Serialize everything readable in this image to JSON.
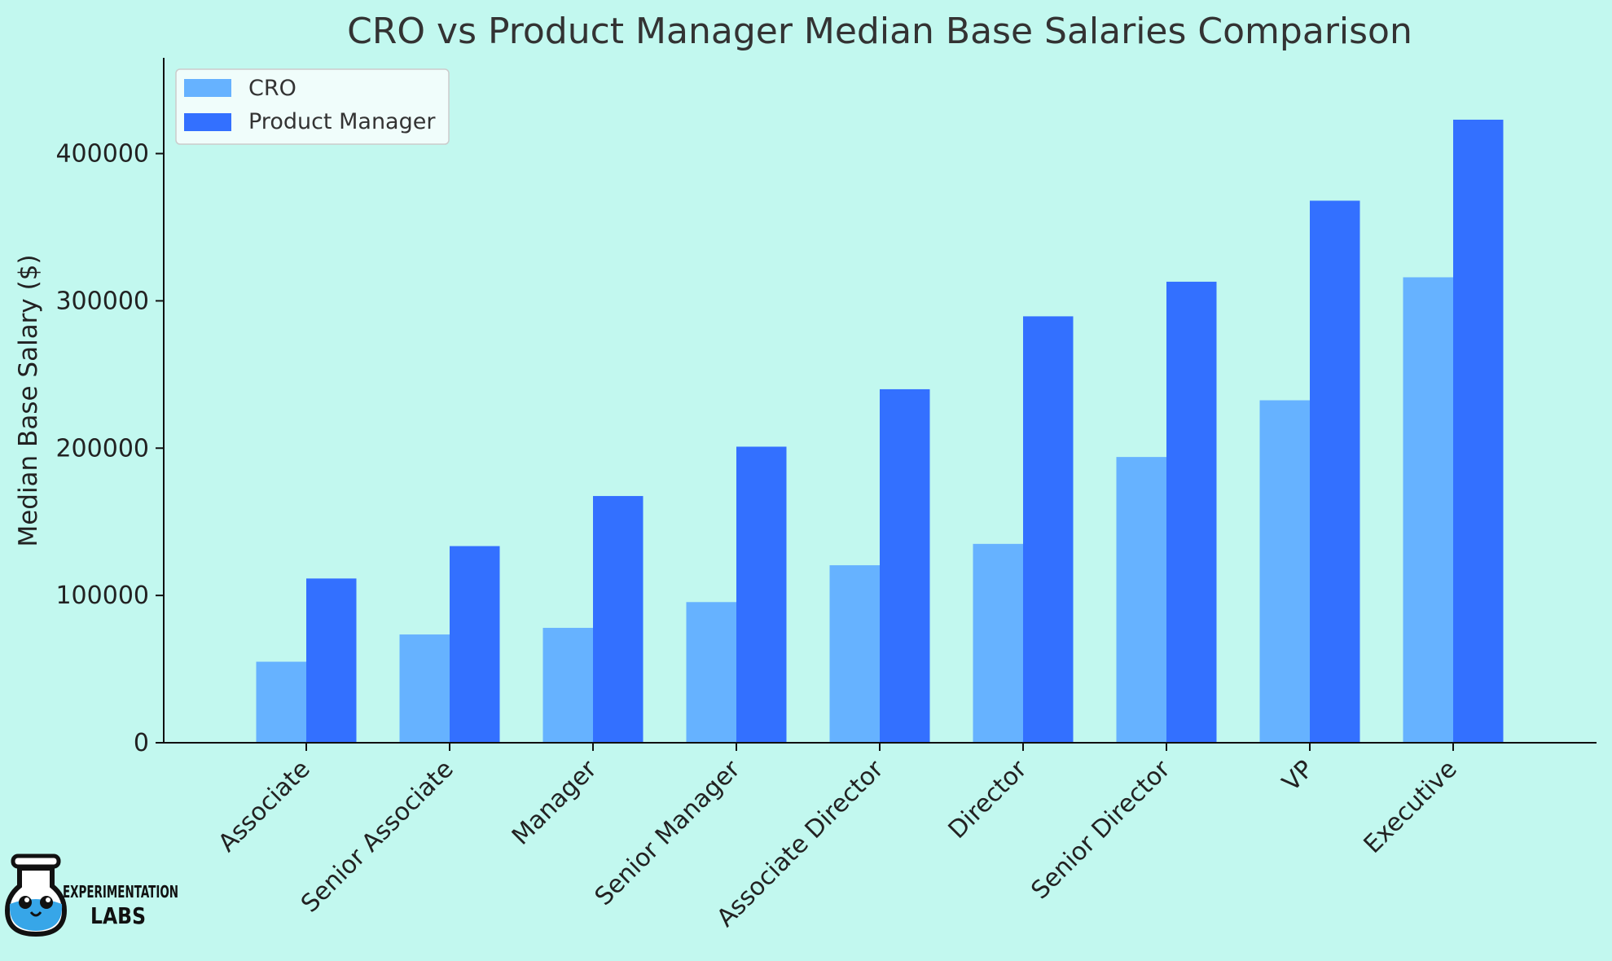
{
  "chart_data": {
    "type": "bar",
    "title": "CRO vs Product Manager Median Base Salaries Comparison",
    "xlabel": "",
    "ylabel": "Median Base Salary ($)",
    "categories": [
      "Associate",
      "Senior Associate",
      "Manager",
      "Senior Manager",
      "Associate Director",
      "Director",
      "Senior Director",
      "VP",
      "Executive"
    ],
    "series": [
      {
        "name": "CRO",
        "color": "#66b2ff",
        "values": [
          55000,
          73500,
          78000,
          95500,
          120500,
          135000,
          194000,
          232500,
          316000
        ]
      },
      {
        "name": "Product Manager",
        "color": "#3370ff",
        "values": [
          111500,
          133500,
          167500,
          201000,
          240000,
          289500,
          313000,
          368000,
          423000
        ]
      }
    ],
    "ylim": [
      0,
      465000
    ],
    "yticks": [
      0,
      100000,
      200000,
      300000,
      400000
    ],
    "grid": false,
    "legend_position": "top-left"
  },
  "logo": {
    "line1": "EXPERIMENTATION",
    "line2": "LABS"
  }
}
